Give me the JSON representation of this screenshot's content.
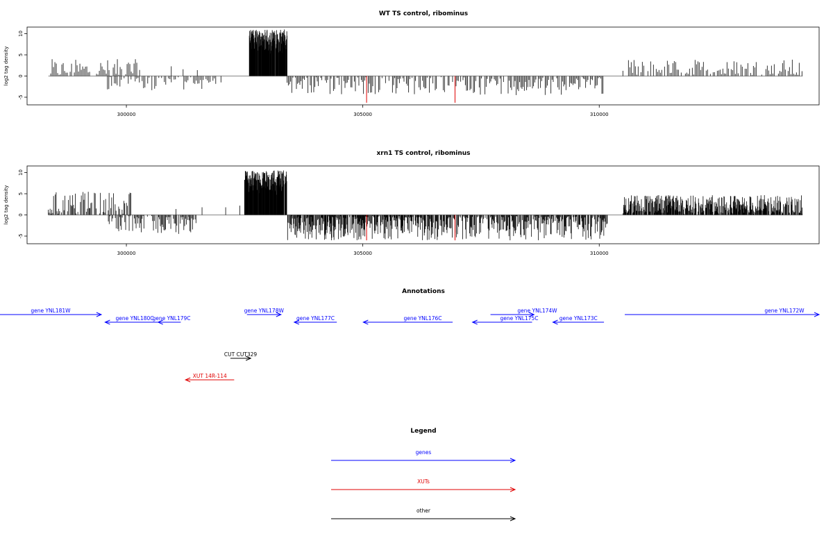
{
  "colors": {
    "gene": "#0000ff",
    "xut": "#e00000",
    "other": "#000000",
    "signal": "#000000",
    "highlight": "#e00000",
    "baseline": "#9a9a9a"
  },
  "chart_data": [
    {
      "type": "bar",
      "title": "WT TS control, ribominus",
      "ylabel": "log2 tag density",
      "xlim": [
        297900,
        314650
      ],
      "ylim": [
        -7,
        11.5
      ],
      "x_ticks": [
        300000,
        305000,
        310000
      ],
      "y_ticks": [
        -5,
        0,
        5,
        10
      ],
      "baseline": 0,
      "sense_segments": [
        {
          "from": 298400,
          "to": 300300,
          "max": 4,
          "density": 0.5
        },
        {
          "from": 302600,
          "to": 303400,
          "max": 11,
          "density": 3
        },
        {
          "from": 310500,
          "to": 314300,
          "max": 4,
          "density": 0.5
        }
      ],
      "antisense_segments": [
        {
          "from": 299600,
          "to": 301900,
          "max": -3.5,
          "density": 0.5
        },
        {
          "from": 303400,
          "to": 310100,
          "max": -4.5,
          "density": 0.6
        }
      ],
      "sparse_peaks": [
        [
          300950,
          2.3
        ],
        [
          301200,
          1.6
        ],
        [
          301500,
          1.4
        ],
        [
          302000,
          -1.5
        ]
      ],
      "highlighted_peaks": [
        [
          305080,
          -6.3
        ],
        [
          306950,
          -6.3
        ]
      ]
    },
    {
      "type": "bar",
      "title": "xrn1 TS control, ribominus",
      "ylabel": "log2 tag density",
      "xlim": [
        297900,
        314650
      ],
      "ylim": [
        -7,
        11.5
      ],
      "x_ticks": [
        300000,
        305000,
        310000
      ],
      "y_ticks": [
        -5,
        0,
        5,
        10
      ],
      "baseline": 0,
      "sense_segments": [
        {
          "from": 298350,
          "to": 300100,
          "max": 5.5,
          "density": 0.8
        },
        {
          "from": 302500,
          "to": 303400,
          "max": 10.5,
          "density": 3
        },
        {
          "from": 310500,
          "to": 314300,
          "max": 4.7,
          "density": 1.8
        }
      ],
      "antisense_segments": [
        {
          "from": 299600,
          "to": 301500,
          "max": -4.5,
          "density": 0.8
        },
        {
          "from": 303400,
          "to": 306500,
          "max": -6,
          "density": 1.6
        },
        {
          "from": 306500,
          "to": 310200,
          "max": -6,
          "density": 1.2
        }
      ],
      "sparse_peaks": [
        [
          301050,
          1.4
        ],
        [
          301600,
          1.8
        ],
        [
          302100,
          1.8
        ],
        [
          302400,
          2.2
        ],
        [
          301300,
          -1.2
        ]
      ],
      "highlighted_peaks": [
        [
          305080,
          -6
        ],
        [
          306950,
          -6
        ]
      ]
    }
  ],
  "annotations": {
    "title": "Annotations",
    "xlim": [
      297900,
      314650
    ],
    "features": [
      {
        "label": "gene YNL181W",
        "type": "gene",
        "start": 297270,
        "end": 299470,
        "dir": "right",
        "row": 0
      },
      {
        "label": "gene YNL180C",
        "type": "gene",
        "start": 299550,
        "end": 300950,
        "dir": "left",
        "row": 1
      },
      {
        "label": "gene YNL179C",
        "type": "gene",
        "start": 300670,
        "end": 301150,
        "dir": "left",
        "row": 1
      },
      {
        "label": "gene YNL178W",
        "type": "gene",
        "start": 302550,
        "end": 303270,
        "dir": "right",
        "row": 0
      },
      {
        "label": "gene YNL177C",
        "type": "gene",
        "start": 303550,
        "end": 304450,
        "dir": "left",
        "row": 1
      },
      {
        "label": "gene YNL176C",
        "type": "gene",
        "start": 305010,
        "end": 306900,
        "dir": "left",
        "row": 1
      },
      {
        "label": "gene YNL174W",
        "type": "gene",
        "start": 307700,
        "end": 308620,
        "dir": "right",
        "row": 0
      },
      {
        "label": "gene YNL175C",
        "type": "gene",
        "start": 307320,
        "end": 308580,
        "dir": "left",
        "row": 1
      },
      {
        "label": "gene YNL173C",
        "type": "gene",
        "start": 309020,
        "end": 310100,
        "dir": "left",
        "row": 1
      },
      {
        "label": "gene YNL172W",
        "type": "gene",
        "start": 310540,
        "end": 314650,
        "dir": "right",
        "row": 0
      },
      {
        "label": "CUT CUT329",
        "type": "other",
        "start": 302200,
        "end": 302630,
        "dir": "right",
        "row": 2
      },
      {
        "label": "XUT 14R-114",
        "type": "xut",
        "start": 301250,
        "end": 302280,
        "dir": "left",
        "row": 3
      }
    ]
  },
  "legend": {
    "title": "Legend",
    "items": [
      {
        "label": "genes",
        "type": "gene"
      },
      {
        "label": "XUTs",
        "type": "xut"
      },
      {
        "label": "other",
        "type": "other"
      }
    ]
  }
}
